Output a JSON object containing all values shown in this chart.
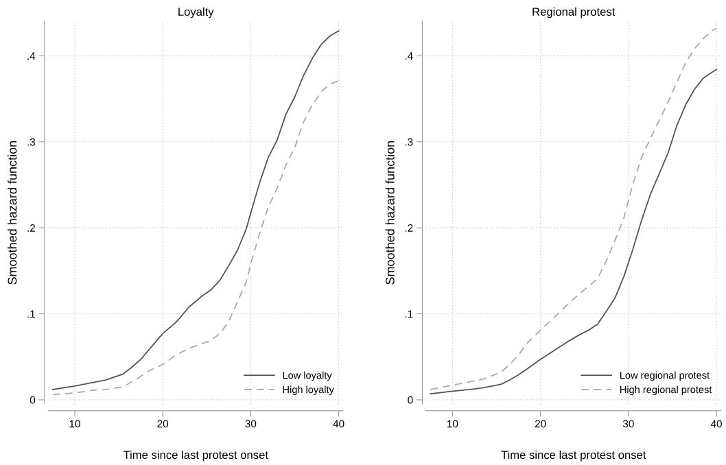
{
  "chart_data": [
    {
      "type": "line",
      "title": "Loyalty",
      "xlabel": "Time since last protest onset",
      "ylabel": "Smoothed hazard function",
      "xlim": [
        7,
        40.5
      ],
      "ylim": [
        -0.005,
        0.44
      ],
      "xticks": [
        10,
        20,
        30,
        40
      ],
      "yticks": [
        {
          "value": 0,
          "label": "0"
        },
        {
          "value": 0.1,
          "label": ".1"
        },
        {
          "value": 0.2,
          "label": ".2"
        },
        {
          "value": 0.3,
          "label": ".3"
        },
        {
          "value": 0.4,
          "label": ".4"
        }
      ],
      "grid": true,
      "legend": "bottom right",
      "series": [
        {
          "name": "Low loyalty",
          "color": "#555555",
          "line_style": "solid",
          "x": [
            7.5,
            10,
            12,
            13.5,
            15.5,
            16.5,
            17.5,
            18.5,
            20,
            21.5,
            23,
            24.5,
            25.5,
            26.5,
            27.5,
            28.5,
            29.5,
            30,
            31,
            32,
            33,
            34,
            35,
            36,
            37,
            38,
            39,
            40
          ],
          "values": [
            0.012,
            0.016,
            0.02,
            0.023,
            0.03,
            0.038,
            0.047,
            0.059,
            0.077,
            0.09,
            0.108,
            0.121,
            0.128,
            0.139,
            0.156,
            0.174,
            0.199,
            0.217,
            0.252,
            0.282,
            0.302,
            0.332,
            0.352,
            0.377,
            0.397,
            0.413,
            0.423,
            0.429
          ]
        },
        {
          "name": "High loyalty",
          "color": "#aaaaaa",
          "line_style": "dashed",
          "x": [
            7.5,
            10,
            12,
            13.5,
            15.5,
            17,
            18.5,
            20,
            21.5,
            23,
            25.5,
            26.5,
            27.5,
            28.5,
            29.5,
            30,
            31,
            32,
            33,
            34,
            35,
            36,
            37,
            38,
            39,
            40
          ],
          "values": [
            0.006,
            0.008,
            0.011,
            0.012,
            0.015,
            0.024,
            0.034,
            0.041,
            0.052,
            0.06,
            0.069,
            0.077,
            0.091,
            0.114,
            0.137,
            0.158,
            0.193,
            0.224,
            0.246,
            0.273,
            0.293,
            0.323,
            0.343,
            0.358,
            0.367,
            0.371
          ]
        }
      ]
    },
    {
      "type": "line",
      "title": "Regional protest",
      "xlabel": "Time since last protest onset",
      "ylabel": "Smoothed hazard function",
      "xlim": [
        7,
        40.5
      ],
      "ylim": [
        -0.005,
        0.44
      ],
      "xticks": [
        10,
        20,
        30,
        40
      ],
      "yticks": [
        {
          "value": 0,
          "label": "0"
        },
        {
          "value": 0.1,
          "label": ".1"
        },
        {
          "value": 0.2,
          "label": ".2"
        },
        {
          "value": 0.3,
          "label": ".3"
        },
        {
          "value": 0.4,
          "label": ".4"
        }
      ],
      "grid": true,
      "legend": "bottom right",
      "series": [
        {
          "name": "Low regional protest",
          "color": "#555555",
          "line_style": "solid",
          "x": [
            7.5,
            10,
            12,
            13.5,
            15.5,
            16.5,
            17.5,
            18.5,
            20,
            21.5,
            23,
            24.5,
            25.5,
            26.5,
            27.5,
            28.5,
            29.5,
            30.5,
            31.5,
            32.5,
            33.5,
            34.5,
            35.5,
            36.5,
            37.5,
            38.5,
            39.5,
            40
          ],
          "values": [
            0.007,
            0.01,
            0.012,
            0.014,
            0.018,
            0.023,
            0.029,
            0.036,
            0.047,
            0.057,
            0.067,
            0.076,
            0.081,
            0.088,
            0.103,
            0.119,
            0.144,
            0.175,
            0.209,
            0.239,
            0.263,
            0.287,
            0.319,
            0.343,
            0.361,
            0.374,
            0.381,
            0.384
          ]
        },
        {
          "name": "High regional protest",
          "color": "#aaaaaa",
          "line_style": "dashed",
          "x": [
            7.5,
            10,
            12,
            13.5,
            15.5,
            16.5,
            17.5,
            18.5,
            20,
            21.5,
            23,
            24.5,
            25.5,
            26.5,
            27.5,
            28.5,
            29.5,
            30.5,
            31.5,
            32.5,
            33.5,
            34.5,
            35.5,
            36.5,
            37.5,
            38.5,
            39.5,
            40
          ],
          "values": [
            0.012,
            0.017,
            0.021,
            0.024,
            0.032,
            0.041,
            0.052,
            0.066,
            0.081,
            0.095,
            0.11,
            0.124,
            0.132,
            0.141,
            0.162,
            0.186,
            0.212,
            0.251,
            0.282,
            0.304,
            0.325,
            0.346,
            0.369,
            0.392,
            0.408,
            0.42,
            0.429,
            0.432
          ]
        }
      ]
    }
  ]
}
